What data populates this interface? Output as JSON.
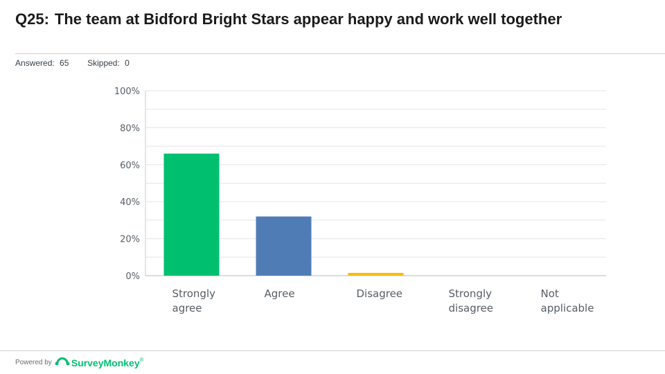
{
  "header": {
    "question_number": "Q25:",
    "question_text": "The team at Bidford Bright Stars appear happy and work well together"
  },
  "stats": {
    "answered_label": "Answered:",
    "answered_value": "65",
    "skipped_label": "Skipped:",
    "skipped_value": "0"
  },
  "footer": {
    "powered_by": "Powered by",
    "brand": "SurveyMonkey",
    "brand_mark": "®",
    "brand_color": "#00bf6f"
  },
  "chart_data": {
    "type": "bar",
    "categories": [
      [
        "Strongly",
        "agree"
      ],
      [
        "Agree"
      ],
      [
        "Disagree"
      ],
      [
        "Strongly",
        "disagree"
      ],
      [
        "Not",
        "applicable"
      ]
    ],
    "values": [
      66,
      32,
      1.5,
      0,
      0
    ],
    "colors": [
      "#00bf6f",
      "#507cb6",
      "#f9be00",
      "#6bc8cd",
      "#ac9ecf"
    ],
    "ylim": [
      0,
      100
    ],
    "yticks": [
      0,
      20,
      40,
      60,
      80,
      100
    ],
    "ytick_labels": [
      "0%",
      "20%",
      "40%",
      "60%",
      "80%",
      "100%"
    ],
    "grid": true,
    "title": "",
    "xlabel": "",
    "ylabel": ""
  }
}
